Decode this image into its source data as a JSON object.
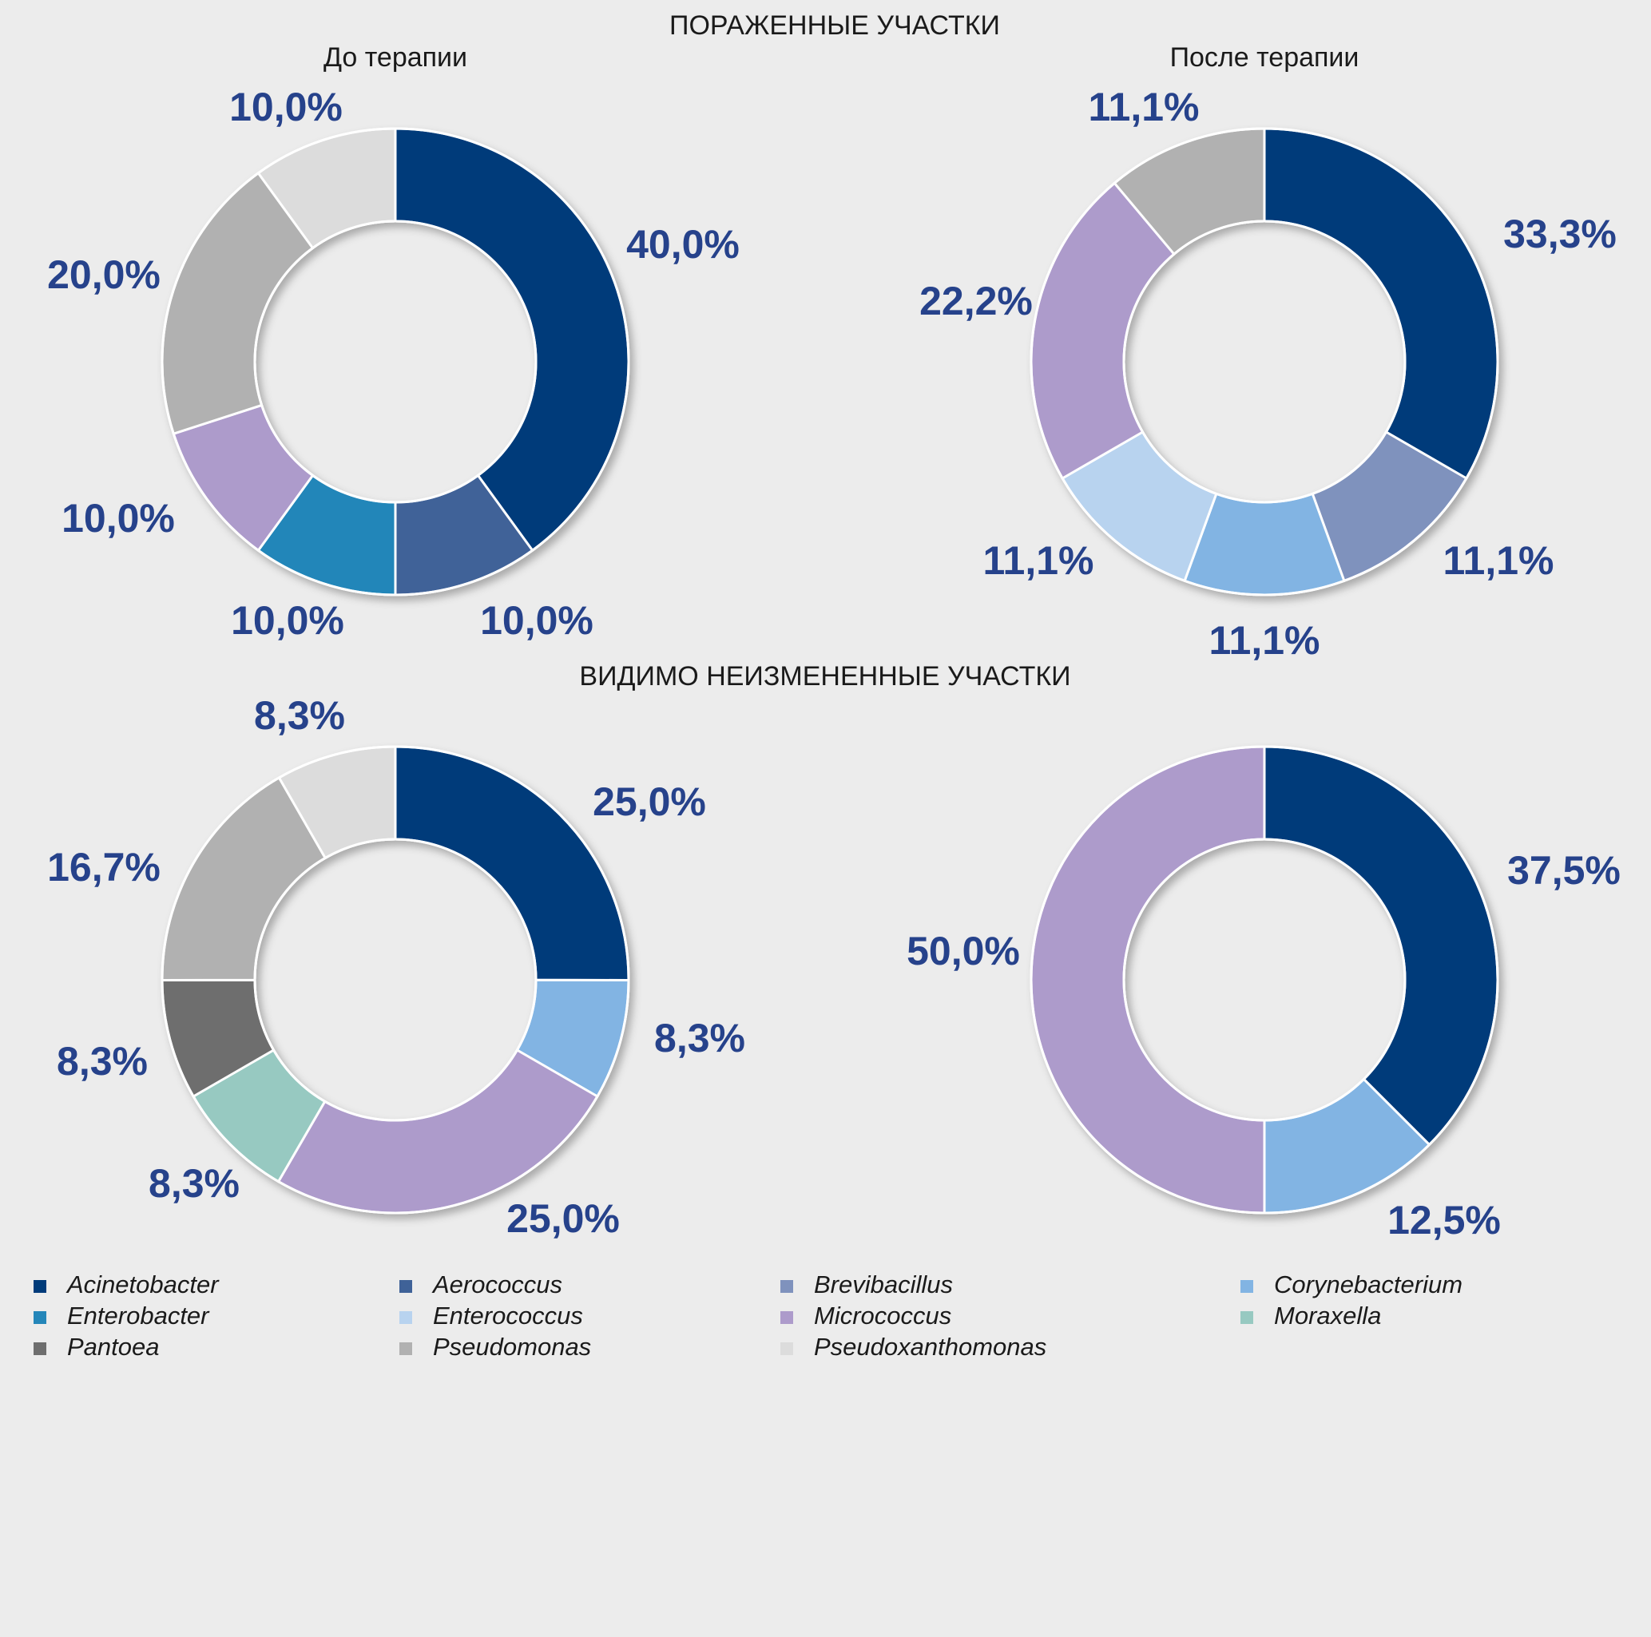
{
  "sections": {
    "top": "ПОРАЖЕННЫЕ УЧАСТКИ",
    "bottom": "ВИДИМО НЕИЗМЕНЕННЫЕ УЧАСТКИ"
  },
  "subtitles": {
    "before": "До терапии",
    "after": "После терапии"
  },
  "colors": {
    "Acinetobacter": "#003b7a",
    "Aerococcus": "#3f6298",
    "Brevibacillus": "#7f92bd",
    "Corynebacterium": "#82b4e3",
    "Enterobacter": "#2486b9",
    "Enterococcus": "#b8d3ef",
    "Micrococcus": "#ad9bcb",
    "Moraxella": "#97c9c1",
    "Pantoea": "#6e6e6e",
    "Pseudomonas": "#b1b1b1",
    "Pseudoxanthomonas": "#dcdcdc",
    "label": "#26428b",
    "background": "#ececec"
  },
  "legend": [
    "Acinetobacter",
    "Aerococcus",
    "Brevibacillus",
    "Corynebacterium",
    "Enterobacter",
    "Enterococcus",
    "Micrococcus",
    "Moraxella",
    "Pantoea",
    "Pseudomonas",
    "Pseudoxanthomonas"
  ],
  "chart_data": [
    {
      "type": "pie",
      "variant": "donut",
      "section": "ПОРАЖЕННЫЕ УЧАСТКИ",
      "title": "До терапии",
      "slices": [
        {
          "name": "Acinetobacter",
          "value": 40.0,
          "label": "40,0%"
        },
        {
          "name": "Aerococcus",
          "value": 10.0,
          "label": "10,0%"
        },
        {
          "name": "Enterobacter",
          "value": 10.0,
          "label": "10,0%"
        },
        {
          "name": "Micrococcus",
          "value": 10.0,
          "label": "10,0%"
        },
        {
          "name": "Pseudomonas",
          "value": 20.0,
          "label": "20,0%"
        },
        {
          "name": "Pseudoxanthomonas",
          "value": 10.0,
          "label": "10,0%"
        }
      ]
    },
    {
      "type": "pie",
      "variant": "donut",
      "section": "ПОРАЖЕННЫЕ УЧАСТКИ",
      "title": "После терапии",
      "slices": [
        {
          "name": "Acinetobacter",
          "value": 33.3,
          "label": "33,3%"
        },
        {
          "name": "Brevibacillus",
          "value": 11.1,
          "label": "11,1%"
        },
        {
          "name": "Corynebacterium",
          "value": 11.1,
          "label": "11,1%"
        },
        {
          "name": "Enterococcus",
          "value": 11.1,
          "label": "11,1%"
        },
        {
          "name": "Micrococcus",
          "value": 22.2,
          "label": "22,2%"
        },
        {
          "name": "Pseudomonas",
          "value": 11.1,
          "label": "11,1%"
        }
      ]
    },
    {
      "type": "pie",
      "variant": "donut",
      "section": "ВИДИМО НЕИЗМЕНЕННЫЕ УЧАСТКИ",
      "title": "До терапии",
      "slices": [
        {
          "name": "Acinetobacter",
          "value": 25.0,
          "label": "25,0%"
        },
        {
          "name": "Corynebacterium",
          "value": 8.3,
          "label": "8,3%"
        },
        {
          "name": "Micrococcus",
          "value": 25.0,
          "label": "25,0%"
        },
        {
          "name": "Moraxella",
          "value": 8.3,
          "label": "8,3%"
        },
        {
          "name": "Pantoea",
          "value": 8.3,
          "label": "8,3%"
        },
        {
          "name": "Pseudomonas",
          "value": 16.7,
          "label": "16,7%"
        },
        {
          "name": "Pseudoxanthomonas",
          "value": 8.3,
          "label": "8,3%"
        }
      ]
    },
    {
      "type": "pie",
      "variant": "donut",
      "section": "ВИДИМО НЕИЗМЕНЕННЫЕ УЧАСТКИ",
      "title": "После терапии",
      "slices": [
        {
          "name": "Acinetobacter",
          "value": 37.5,
          "label": "37,5%"
        },
        {
          "name": "Corynebacterium",
          "value": 12.5,
          "label": "12,5%"
        },
        {
          "name": "Micrococcus",
          "value": 50.0,
          "label": "50,0%"
        }
      ]
    }
  ]
}
